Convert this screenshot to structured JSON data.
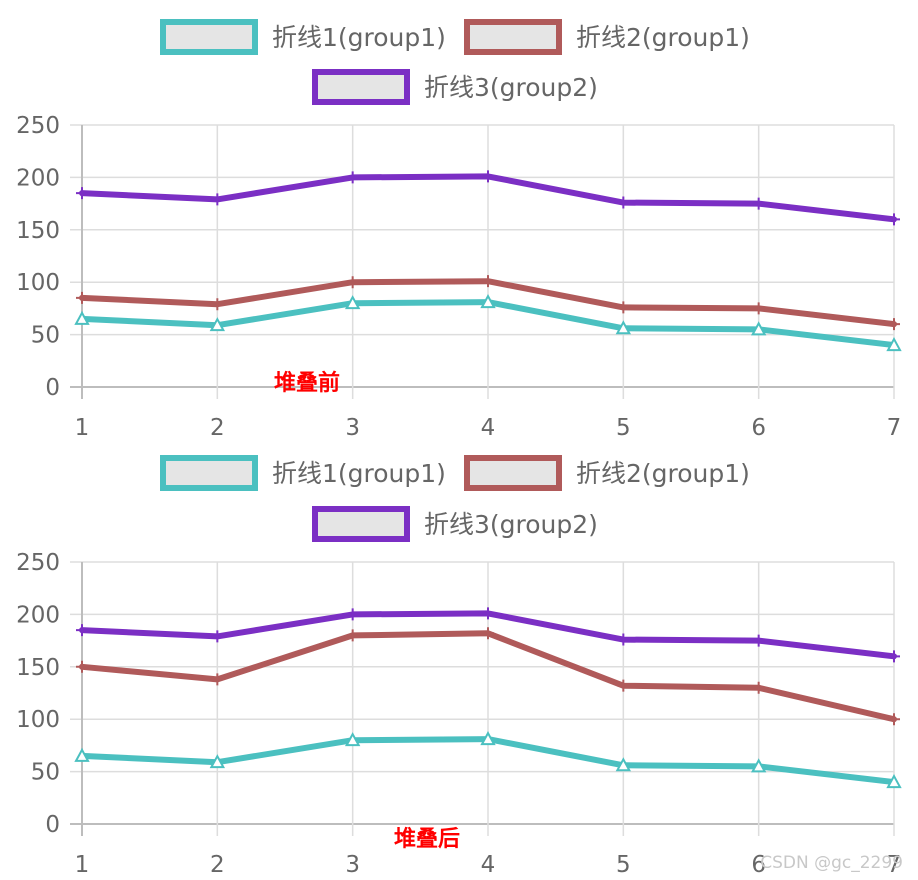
{
  "chart_data": [
    {
      "type": "line",
      "annotation": "堆叠前",
      "stacked": false,
      "categories": [
        "1",
        "2",
        "3",
        "4",
        "5",
        "6",
        "7"
      ],
      "ylim": [
        0,
        250
      ],
      "yticks": [
        "250",
        "200",
        "150",
        "100",
        "50",
        "0"
      ],
      "ytick_values": [
        250,
        200,
        150,
        100,
        50,
        0
      ],
      "grid": true,
      "series": [
        {
          "name": "折线1(group1)",
          "color": "#4bc0c0",
          "marker": "triangle",
          "values": [
            65,
            59,
            80,
            81,
            56,
            55,
            40
          ]
        },
        {
          "name": "折线2(group1)",
          "color": "#b05a5a",
          "marker": "cross",
          "values": [
            85,
            79,
            100,
            101,
            76,
            75,
            60
          ]
        },
        {
          "name": "折线3(group2)",
          "color": "#7b2fc4",
          "marker": "cross",
          "values": [
            185,
            179,
            200,
            201,
            176,
            175,
            160
          ]
        }
      ]
    },
    {
      "type": "line",
      "annotation": "堆叠后",
      "stacked": true,
      "categories": [
        "1",
        "2",
        "3",
        "4",
        "5",
        "6",
        "7"
      ],
      "ylim": [
        0,
        250
      ],
      "yticks": [
        "250",
        "200",
        "150",
        "100",
        "50",
        "0"
      ],
      "ytick_values": [
        250,
        200,
        150,
        100,
        50,
        0
      ],
      "grid": true,
      "series": [
        {
          "name": "折线1(group1)",
          "color": "#4bc0c0",
          "marker": "triangle",
          "values": [
            65,
            59,
            80,
            81,
            56,
            55,
            40
          ]
        },
        {
          "name": "折线2(group1)",
          "color": "#b05a5a",
          "marker": "cross",
          "values": [
            150,
            138,
            180,
            182,
            132,
            130,
            100
          ]
        },
        {
          "name": "折线3(group2)",
          "color": "#7b2fc4",
          "marker": "cross",
          "values": [
            185,
            179,
            200,
            201,
            176,
            175,
            160
          ]
        }
      ]
    }
  ],
  "watermark": "CSDN @gc_2299"
}
